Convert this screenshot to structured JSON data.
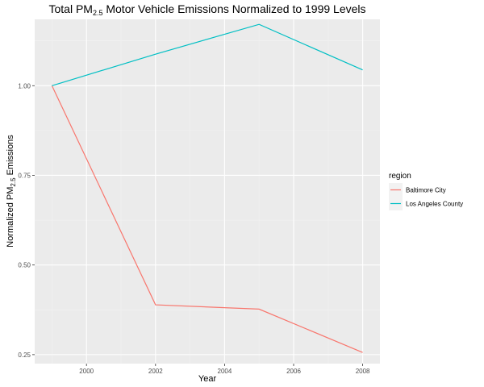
{
  "chart_data": {
    "type": "line",
    "title_main": "Total PM",
    "title_sub": "2.5",
    "title_rest": " Motor Vehicle Emissions Normalized to 1999 Levels",
    "xlabel": "Year",
    "ylabel_main": "Normalized PM",
    "ylabel_sub": "2.5",
    "ylabel_rest": " Emissions",
    "xlim": [
      1998.5,
      2008.5
    ],
    "ylim": [
      0.225,
      1.185
    ],
    "x_ticks": [
      2000,
      2002,
      2004,
      2006,
      2008
    ],
    "y_ticks": [
      0.25,
      0.5,
      0.75,
      1.0
    ],
    "y_tick_labels": [
      "0.25",
      "0.50",
      "0.75",
      "1.00"
    ],
    "x": [
      1999,
      2002,
      2005,
      2008
    ],
    "grid": true,
    "legend": {
      "title": "region",
      "position": "right"
    },
    "series": [
      {
        "name": "Baltimore City",
        "color": "#F8766D",
        "values": [
          1.0,
          0.389,
          0.377,
          0.256
        ]
      },
      {
        "name": "Los Angeles County",
        "color": "#00BFC4",
        "values": [
          1.0,
          1.088,
          1.171,
          1.044
        ]
      }
    ]
  }
}
